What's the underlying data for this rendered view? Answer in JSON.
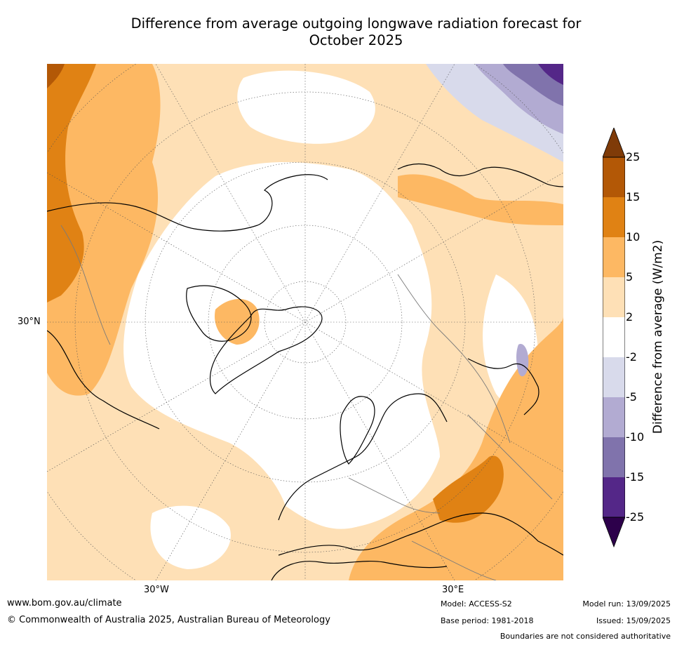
{
  "title_line1": "Difference from average outgoing longwave radiation forecast for",
  "title_line2": "October 2025",
  "map_labels": {
    "lat_30n": "30°N",
    "lon_30w": "30°W",
    "lon_30e": "30°E"
  },
  "colorbar": {
    "title": "Difference from average (W/m2)",
    "ticks": [
      "25",
      "15",
      "10",
      "5",
      "2",
      "-2",
      "-5",
      "-10",
      "-15",
      "-25"
    ],
    "colors": {
      "over": "#7f3b08",
      "15_25": "#b35806",
      "10_15": "#e08214",
      "5_10": "#fdb863",
      "2_5": "#fee0b6",
      "neutral": "#ffffff",
      "m5_m2": "#d8daeb",
      "m10_m5": "#b2abd2",
      "m15_m10": "#8073ac",
      "m25_m15": "#542788",
      "under": "#2d004b"
    }
  },
  "footer": {
    "website": "www.bom.gov.au/climate",
    "copyright": "© Commonwealth of Australia 2025, Australian Bureau of Meteorology",
    "model": "Model: ACCESS-S2",
    "base_period": "Base period: 1981-2018",
    "model_run": "Model run: 13/09/2025",
    "issued": "Issued: 15/09/2025",
    "disclaimer": "Boundaries are not considered authoritative"
  }
}
